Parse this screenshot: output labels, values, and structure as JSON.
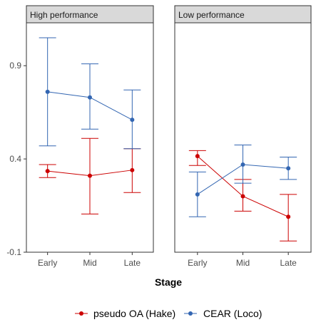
{
  "chart_data": {
    "type": "line",
    "facets": [
      {
        "label": "High performance",
        "series": [
          {
            "name": "pseudo OA (Hake)",
            "color": "#cc0000",
            "points": [
              {
                "x": "Early",
                "y": 0.335,
                "lo": 0.3,
                "hi": 0.37
              },
              {
                "x": "Mid",
                "y": 0.31,
                "lo": 0.105,
                "hi": 0.51
              },
              {
                "x": "Late",
                "y": 0.34,
                "lo": 0.22,
                "hi": 0.455
              }
            ]
          },
          {
            "name": "CEAR (Loco)",
            "color": "#3366b2",
            "points": [
              {
                "x": "Early",
                "y": 0.76,
                "lo": 0.47,
                "hi": 1.05
              },
              {
                "x": "Mid",
                "y": 0.73,
                "lo": 0.56,
                "hi": 0.91
              },
              {
                "x": "Late",
                "y": 0.61,
                "lo": 0.455,
                "hi": 0.77
              }
            ]
          }
        ]
      },
      {
        "label": "Low performance",
        "series": [
          {
            "name": "pseudo OA (Hake)",
            "color": "#cc0000",
            "points": [
              {
                "x": "Early",
                "y": 0.415,
                "lo": 0.365,
                "hi": 0.445
              },
              {
                "x": "Mid",
                "y": 0.2,
                "lo": 0.12,
                "hi": 0.29
              },
              {
                "x": "Late",
                "y": 0.09,
                "lo": -0.04,
                "hi": 0.21
              }
            ]
          },
          {
            "name": "CEAR (Loco)",
            "color": "#3366b2",
            "points": [
              {
                "x": "Early",
                "y": 0.21,
                "lo": 0.09,
                "hi": 0.33
              },
              {
                "x": "Mid",
                "y": 0.37,
                "lo": 0.27,
                "hi": 0.475
              },
              {
                "x": "Late",
                "y": 0.35,
                "lo": 0.29,
                "hi": 0.41
              }
            ]
          }
        ]
      }
    ],
    "categories": [
      "Early",
      "Mid",
      "Late"
    ],
    "xlabel": "Stage",
    "ylabel": "",
    "ylim": [
      -0.1,
      1.13
    ],
    "yticks": [
      -0.1,
      0.4,
      0.9
    ],
    "ytick_labels": [
      "-0.1",
      "0.4",
      "0.9"
    ],
    "grid": false,
    "legend": "bottom",
    "legend_entries": [
      {
        "name": "pseudo OA (Hake)",
        "color": "#cc0000"
      },
      {
        "name": "CEAR (Loco)",
        "color": "#3366b2"
      }
    ]
  }
}
